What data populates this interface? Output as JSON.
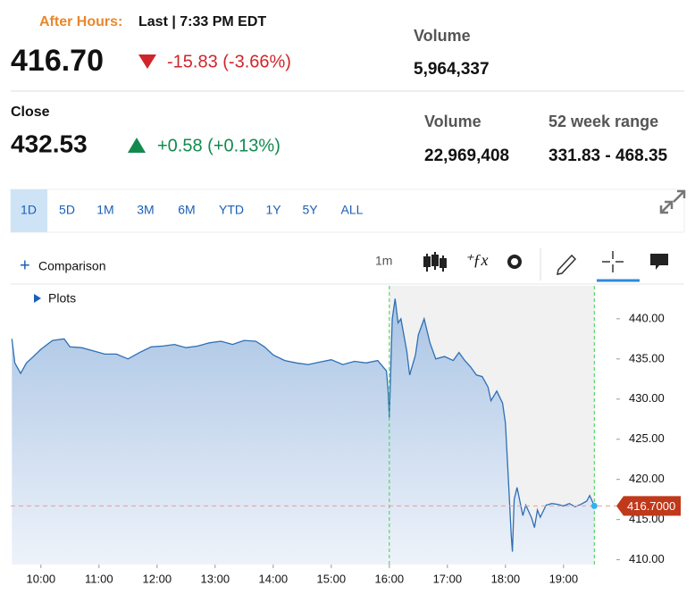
{
  "header": {
    "status_label": "After Hours:",
    "status_text": "Last | 7:33 PM EDT",
    "price": "416.70",
    "change": "-15.83 (-3.66%)",
    "volume_label": "Volume",
    "volume": "5,964,337"
  },
  "close": {
    "label": "Close",
    "price": "432.53",
    "change": "+0.58 (+0.13%)",
    "volume_label": "Volume",
    "volume": "22,969,408",
    "range_label": "52 week range",
    "range": "331.83 - 468.35"
  },
  "tabs": [
    "1D",
    "5D",
    "1M",
    "3M",
    "6M",
    "YTD",
    "1Y",
    "5Y",
    "ALL"
  ],
  "toolbar": {
    "comparison": "Comparison",
    "interval": "1m"
  },
  "chart": {
    "type": "line",
    "plots_label": "Plots",
    "color": "#2e6fb5",
    "x": [
      9.5,
      9.55,
      9.65,
      9.75,
      9.9,
      10.0,
      10.2,
      10.4,
      10.5,
      10.7,
      10.9,
      11.1,
      11.3,
      11.5,
      11.7,
      11.9,
      12.1,
      12.3,
      12.5,
      12.7,
      12.9,
      13.1,
      13.3,
      13.5,
      13.7,
      13.85,
      14.0,
      14.2,
      14.4,
      14.6,
      14.8,
      15.0,
      15.2,
      15.4,
      15.6,
      15.8,
      15.95,
      15.98,
      16.0,
      16.02,
      16.05,
      16.1,
      16.15,
      16.2,
      16.3,
      16.35,
      16.45,
      16.5,
      16.6,
      16.7,
      16.8,
      16.95,
      17.1,
      17.2,
      17.3,
      17.4,
      17.5,
      17.6,
      17.7,
      17.75,
      17.85,
      17.95,
      18.0,
      18.05,
      18.1,
      18.12,
      18.15,
      18.2,
      18.3,
      18.35,
      18.45,
      18.5,
      18.55,
      18.6,
      18.7,
      18.8,
      18.9,
      19.0,
      19.1,
      19.2,
      19.3,
      19.4,
      19.45,
      19.5,
      19.53
    ],
    "values": [
      437.5,
      434.5,
      433.2,
      434.5,
      435.5,
      436.2,
      437.3,
      437.5,
      436.5,
      436.4,
      436.0,
      435.6,
      435.6,
      435.0,
      435.8,
      436.5,
      436.6,
      436.8,
      436.4,
      436.6,
      437.0,
      437.2,
      436.8,
      437.3,
      437.2,
      436.5,
      435.5,
      434.8,
      434.5,
      434.3,
      434.6,
      434.9,
      434.3,
      434.7,
      434.5,
      434.8,
      433.5,
      431.0,
      427.7,
      432.5,
      440.0,
      442.5,
      439.5,
      440.0,
      436.0,
      433.0,
      435.5,
      438.0,
      440.0,
      437.0,
      435.0,
      435.3,
      434.8,
      435.8,
      434.8,
      434.0,
      433.0,
      432.8,
      431.5,
      429.8,
      431.0,
      429.5,
      427.0,
      420.0,
      413.0,
      411.0,
      417.5,
      419.0,
      415.5,
      416.8,
      415.2,
      414.0,
      416.2,
      415.3,
      416.8,
      417.0,
      416.9,
      416.7,
      417.0,
      416.6,
      416.9,
      417.3,
      418.0,
      417.2,
      416.7
    ],
    "xlim": [
      9.48,
      19.91
    ],
    "ylim": [
      409.4,
      444.1
    ],
    "xticks": [
      {
        "value": 10,
        "label": "10:00"
      },
      {
        "value": 11,
        "label": "11:00"
      },
      {
        "value": 12,
        "label": "12:00"
      },
      {
        "value": 13,
        "label": "13:00"
      },
      {
        "value": 14,
        "label": "14:00"
      },
      {
        "value": 15,
        "label": "15:00"
      },
      {
        "value": 16,
        "label": "16:00"
      },
      {
        "value": 17,
        "label": "17:00"
      },
      {
        "value": 18,
        "label": "18:00"
      },
      {
        "value": 19,
        "label": "19:00"
      }
    ],
    "yticks": [
      {
        "value": 410,
        "label": "410.00"
      },
      {
        "value": 415,
        "label": "415.00"
      },
      {
        "value": 420,
        "label": "420.00"
      },
      {
        "value": 425,
        "label": "425.00"
      },
      {
        "value": 430,
        "label": "430.00"
      },
      {
        "value": 435,
        "label": "435.00"
      },
      {
        "value": 440,
        "label": "440.00"
      }
    ],
    "price_marker": {
      "value": 416.7,
      "label": "416.7000"
    }
  }
}
